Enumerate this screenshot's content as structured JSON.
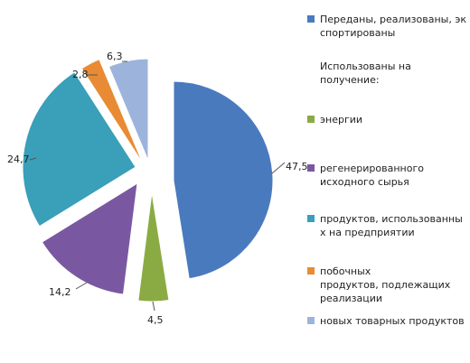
{
  "chart_data": {
    "type": "pie",
    "title": "",
    "exploded": true,
    "slices": [
      {
        "label": "Переданы, реализованы, экспортированы",
        "value": 47.5,
        "value_label": "47,5",
        "color": "#4a7abe"
      },
      {
        "label": "энергии",
        "value": 4.5,
        "value_label": "4,5",
        "color": "#8aab43"
      },
      {
        "label": "регенерированного исходного сырья",
        "value": 14.2,
        "value_label": "14,2",
        "color": "#7a58a1"
      },
      {
        "label": "продуктов, использованных на предприятии",
        "value": 24.7,
        "value_label": "24,7",
        "color": "#3a9fb8"
      },
      {
        "label": "побочных продуктов, подлежащих реализации",
        "value": 2.8,
        "value_label": "2,8",
        "color": "#e88b34"
      },
      {
        "label": "новых товарных продуктов",
        "value": 6.3,
        "value_label": "6,3",
        "color": "#9cb4dc"
      }
    ],
    "legend_position": "right"
  },
  "legend": {
    "heading": "Использованы на получение:",
    "entries": [
      {
        "lines": [
          "Переданы, реализованы, эк",
          "спортированы"
        ],
        "color": "#4a7abe"
      },
      {
        "lines": [
          "энергии"
        ],
        "color": "#8aab43"
      },
      {
        "lines": [
          "регенерированного",
          "исходного сырья"
        ],
        "color": "#7a58a1"
      },
      {
        "lines": [
          "продуктов, использованны",
          "х на предприятии"
        ],
        "color": "#3a9fb8"
      },
      {
        "lines": [
          "побочных",
          "продуктов, подлежащих",
          "реализации"
        ],
        "color": "#e88b34"
      },
      {
        "lines": [
          "новых товарных продуктов"
        ],
        "color": "#9cb4dc"
      }
    ]
  }
}
